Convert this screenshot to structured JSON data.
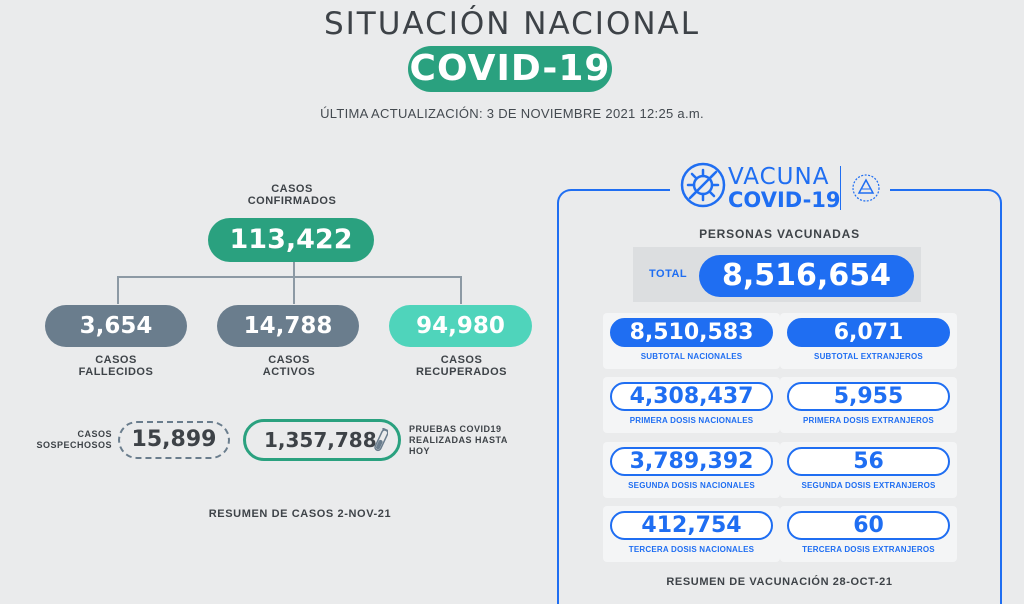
{
  "header": {
    "title": "SITUACIÓN NACIONAL",
    "badge": "COVID-19",
    "updated": "ÚLTIMA ACTUALIZACIÓN: 3 DE NOVIEMBRE 2021 12:25 a.m."
  },
  "cases": {
    "confirmed_label": "CASOS CONFIRMADOS",
    "confirmed_value": "113,422",
    "deaths_value": "3,654",
    "deaths_label": "CASOS FALLECIDOS",
    "active_value": "14,788",
    "active_label": "CASOS ACTIVOS",
    "recovered_value": "94,980",
    "recovered_label": "CASOS RECUPERADOS",
    "suspected_label": "CASOS SOSPECHOSOS",
    "suspected_value": "15,899",
    "tests_value": "1,357,788",
    "tests_label": "PRUEBAS COVID19 REALIZADAS HASTA HOY",
    "summary": "RESUMEN DE CASOS 2-NOV-21"
  },
  "vaccination": {
    "logo_top": "VACUNA",
    "logo_bottom": "COVID-19",
    "heading": "PERSONAS VACUNADAS",
    "total_label": "TOTAL",
    "total_value": "8,516,654",
    "cards": [
      {
        "value": "8,510,583",
        "caption": "SUBTOTAL NACIONALES"
      },
      {
        "value": "6,071",
        "caption": "SUBTOTAL EXTRANJEROS"
      },
      {
        "value": "4,308,437",
        "caption": "PRIMERA DOSIS NACIONALES"
      },
      {
        "value": "5,955",
        "caption": "PRIMERA DOSIS EXTRANJEROS"
      },
      {
        "value": "3,789,392",
        "caption": "SEGUNDA DOSIS NACIONALES"
      },
      {
        "value": "56",
        "caption": "SEGUNDA DOSIS EXTRANJEROS"
      },
      {
        "value": "412,754",
        "caption": "TERCERA DOSIS NACIONALES"
      },
      {
        "value": "60",
        "caption": "TERCERA DOSIS EXTRANJEROS"
      }
    ],
    "summary": "RESUMEN DE VACUNACIÓN 28-OCT-21"
  },
  "colors": {
    "green": "#2aa17f",
    "teal": "#4fd4bb",
    "slate": "#6a7d8d",
    "blue": "#1f6ef2"
  }
}
